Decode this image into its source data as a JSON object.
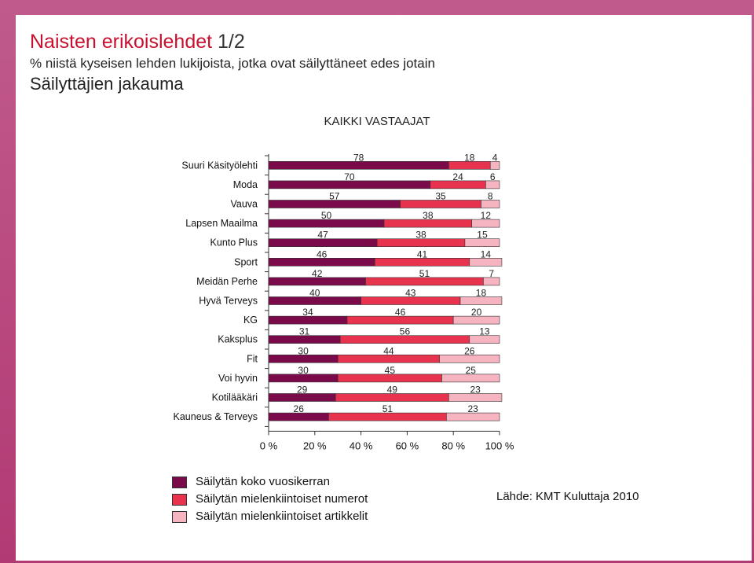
{
  "header": {
    "title": "Naisten erikoislehdet",
    "title_num": "1/2",
    "subtitle": "% niistä kyseisen lehden lukijoista, jotka ovat säilyttäneet edes jotain",
    "subtitle2": "Säilyttäjien jakauma"
  },
  "source": "Lähde: KMT Kuluttaja 2010",
  "chart_data": {
    "type": "bar",
    "orientation": "horizontal",
    "stacked": "percent",
    "title": "KAIKKI VASTAAJAT",
    "categories": [
      "Suuri Käsityölehti",
      "Moda",
      "Vauva",
      "Lapsen Maailma",
      "Kunto Plus",
      "Sport",
      "Meidän Perhe",
      "Hyvä Terveys",
      "KG",
      "Kaksplus",
      "Fit",
      "Voi hyvin",
      "Kotilääkäri",
      "Kauneus & Terveys"
    ],
    "series": [
      {
        "name": "Säilytän koko vuosikerran",
        "color": "#7a0a4a",
        "values": [
          78,
          70,
          57,
          50,
          47,
          46,
          42,
          40,
          34,
          31,
          30,
          30,
          29,
          26
        ]
      },
      {
        "name": "Säilytän mielenkiintoiset numerot",
        "color": "#e8334f",
        "values": [
          18,
          24,
          35,
          38,
          38,
          41,
          51,
          43,
          46,
          56,
          44,
          45,
          49,
          51
        ]
      },
      {
        "name": "Säilytän mielenkiintoiset artikkelit",
        "color": "#f6b3c0",
        "values": [
          4,
          6,
          8,
          12,
          15,
          14,
          7,
          18,
          20,
          13,
          26,
          25,
          23,
          23
        ]
      }
    ],
    "xticks": [
      "0 %",
      "20 %",
      "40 %",
      "60 %",
      "80 %",
      "100 %"
    ],
    "xlim": [
      0,
      100
    ],
    "legend": "bottom-left"
  }
}
